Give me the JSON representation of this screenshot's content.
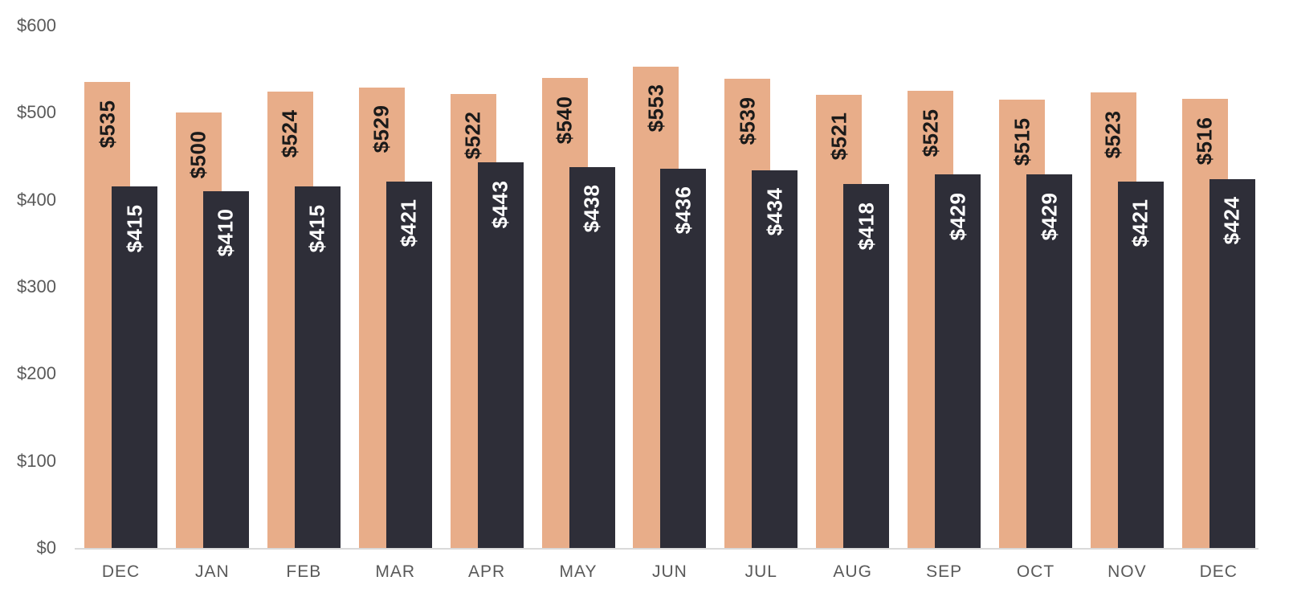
{
  "chart_data": {
    "type": "bar",
    "title": "",
    "categories": [
      "DEC",
      "JAN",
      "FEB",
      "MAR",
      "APR",
      "MAY",
      "JUN",
      "JUL",
      "AUG",
      "SEP",
      "OCT",
      "NOV",
      "DEC"
    ],
    "series": [
      {
        "name": "peach-series",
        "color": "#E8AD89",
        "label_color": "#1A1A1A",
        "values": [
          535,
          500,
          524,
          529,
          522,
          540,
          553,
          539,
          521,
          525,
          515,
          523,
          516
        ],
        "data_labels": [
          "$535",
          "$500",
          "$524",
          "$529",
          "$522",
          "$540",
          "$553",
          "$539",
          "$521",
          "$525",
          "$515",
          "$523",
          "$516"
        ]
      },
      {
        "name": "dark-series",
        "color": "#2E2E38",
        "label_color": "#FFFFFF",
        "values": [
          415,
          410,
          415,
          421,
          443,
          438,
          436,
          434,
          418,
          429,
          429,
          421,
          424
        ],
        "data_labels": [
          "$415",
          "$410",
          "$415",
          "$421",
          "$443",
          "$438",
          "$436",
          "$434",
          "$418",
          "$429",
          "$429",
          "$421",
          "$424"
        ]
      }
    ],
    "y_axis": {
      "ylim": [
        0,
        600
      ],
      "ticks": [
        {
          "value": 0,
          "label": "$0"
        },
        {
          "value": 100,
          "label": "$100"
        },
        {
          "value": 200,
          "label": "$200"
        },
        {
          "value": 300,
          "label": "$300"
        },
        {
          "value": 400,
          "label": "$400"
        },
        {
          "value": 500,
          "label": "$500"
        },
        {
          "value": 600,
          "label": "$600"
        }
      ]
    },
    "grid": false,
    "legend": false,
    "colors": {
      "tick_label": "#595959",
      "axis_line": "#D9D9D9",
      "background": "#FFFFFF"
    }
  }
}
